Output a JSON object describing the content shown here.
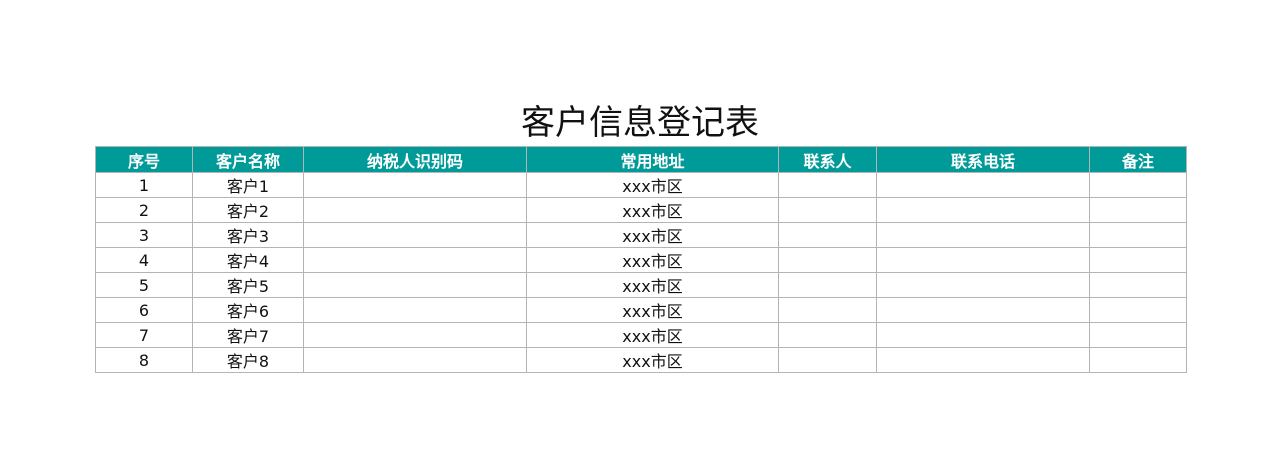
{
  "title": "客户信息登记表",
  "header_color": "#009a98",
  "columns": [
    "序号",
    "客户名称",
    "纳税人识别码",
    "常用地址",
    "联系人",
    "联系电话",
    "备注"
  ],
  "rows": [
    [
      "1",
      "客户1",
      "",
      "xxx市区",
      "",
      "",
      ""
    ],
    [
      "2",
      "客户2",
      "",
      "xxx市区",
      "",
      "",
      ""
    ],
    [
      "3",
      "客户3",
      "",
      "xxx市区",
      "",
      "",
      ""
    ],
    [
      "4",
      "客户4",
      "",
      "xxx市区",
      "",
      "",
      ""
    ],
    [
      "5",
      "客户5",
      "",
      "xxx市区",
      "",
      "",
      ""
    ],
    [
      "6",
      "客户6",
      "",
      "xxx市区",
      "",
      "",
      ""
    ],
    [
      "7",
      "客户7",
      "",
      "xxx市区",
      "",
      "",
      ""
    ],
    [
      "8",
      "客户8",
      "",
      "xxx市区",
      "",
      "",
      ""
    ]
  ]
}
